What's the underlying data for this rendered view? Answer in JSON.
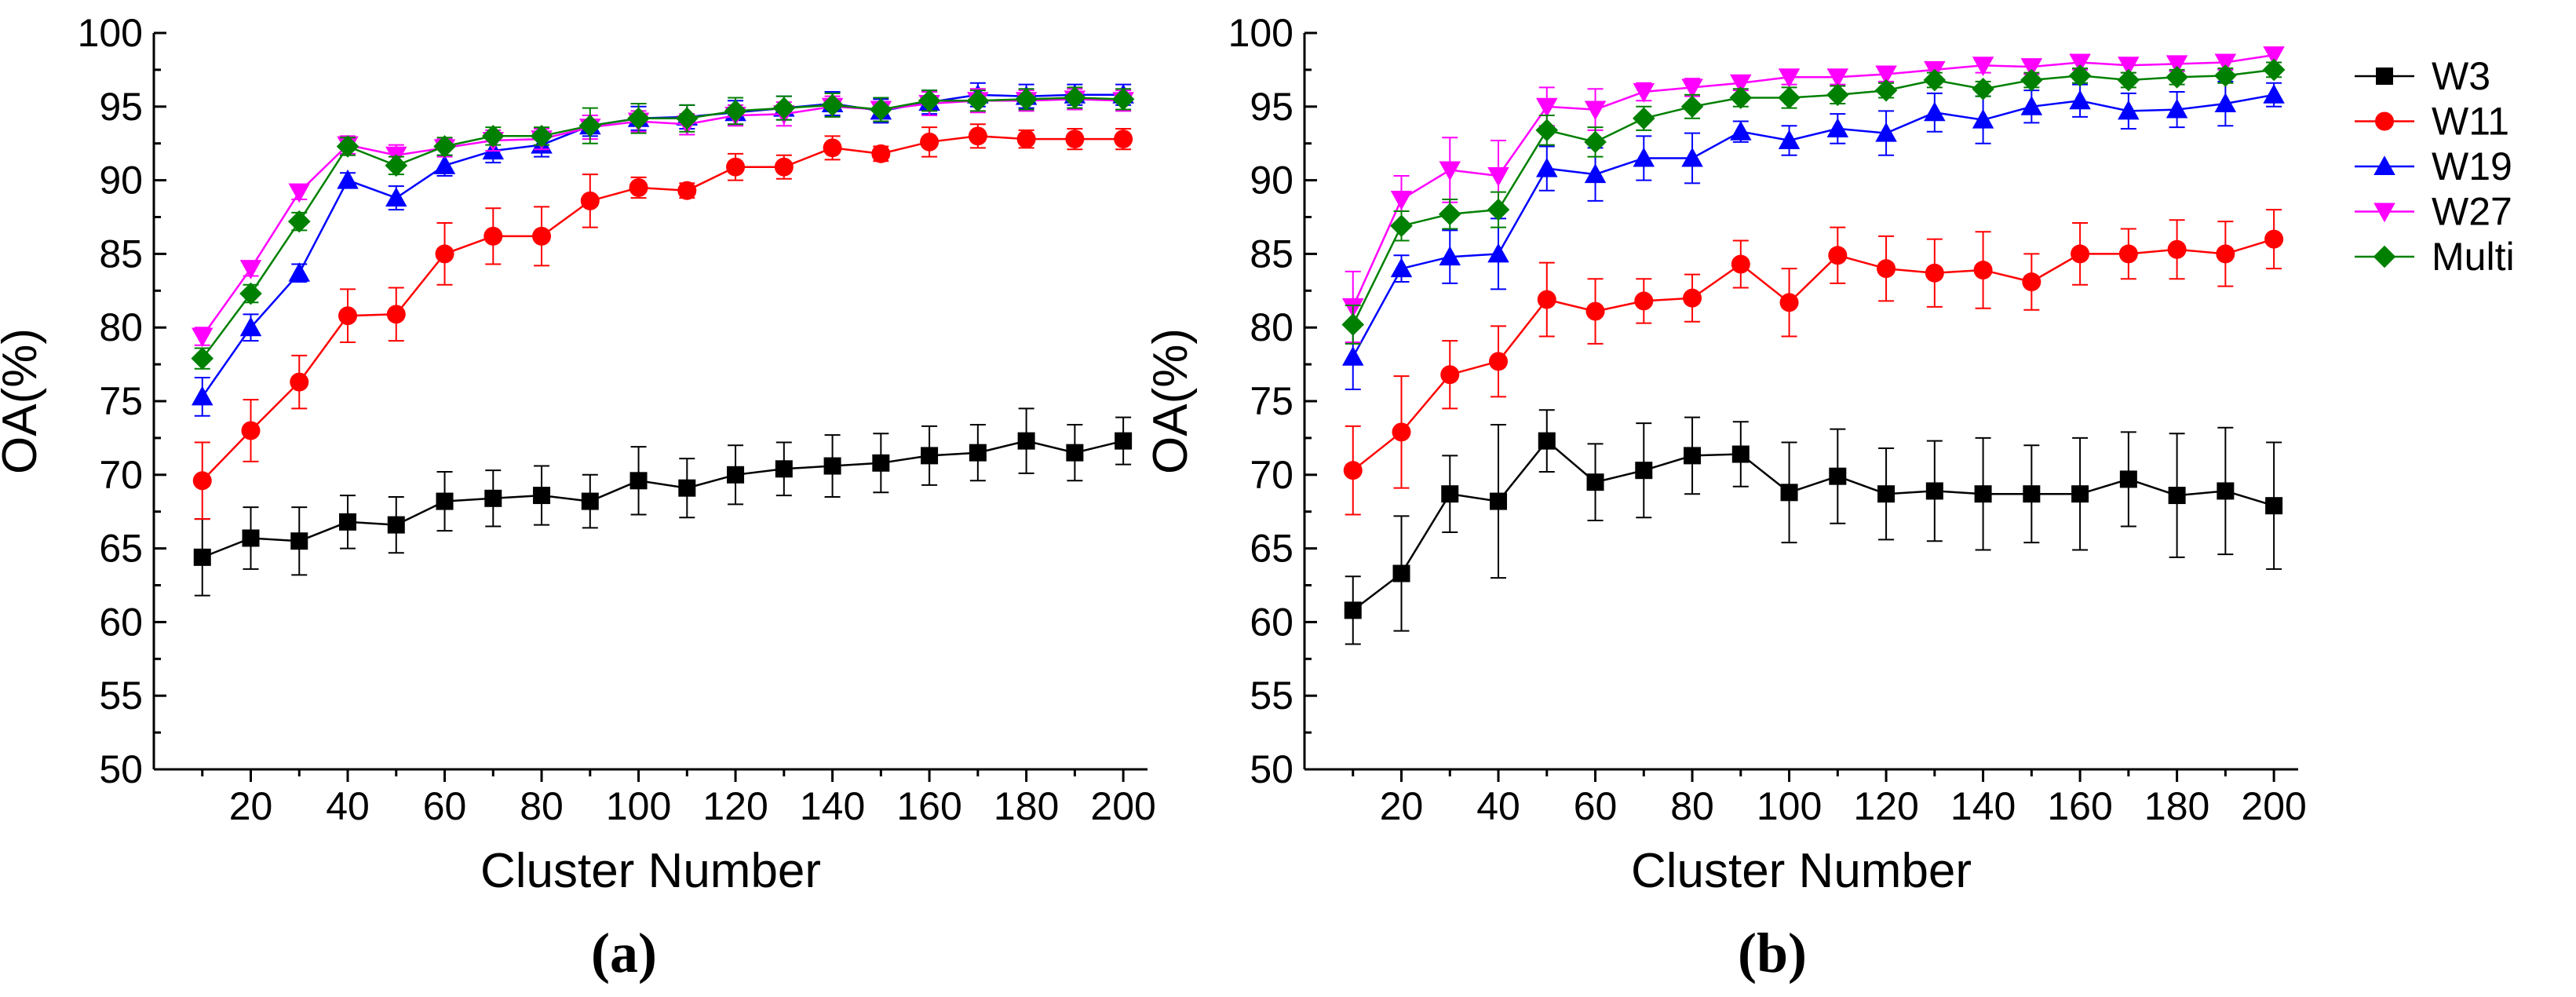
{
  "chart_data": [
    {
      "type": "line",
      "panel_label": "(a)",
      "xlabel": "Cluster Number",
      "ylabel": "OA(%)",
      "xlim": [
        0,
        205
      ],
      "ylim": [
        50,
        100
      ],
      "xticks": [
        20,
        40,
        60,
        80,
        100,
        120,
        140,
        160,
        180,
        200
      ],
      "yticks": [
        50,
        55,
        60,
        65,
        70,
        75,
        80,
        85,
        90,
        95,
        100
      ],
      "x": [
        10,
        20,
        30,
        40,
        50,
        60,
        70,
        80,
        90,
        100,
        110,
        120,
        130,
        140,
        150,
        160,
        170,
        180,
        190,
        200
      ],
      "series": [
        {
          "name": "W3",
          "color": "#000000",
          "marker": "square",
          "values": [
            64.4,
            65.7,
            65.5,
            66.8,
            66.6,
            68.2,
            68.4,
            68.6,
            68.2,
            69.6,
            69.1,
            70.0,
            70.4,
            70.6,
            70.8,
            71.3,
            71.5,
            72.3,
            71.5,
            72.3
          ],
          "errors": [
            2.6,
            2.1,
            2.3,
            1.8,
            1.9,
            2.0,
            1.9,
            2.0,
            1.8,
            2.3,
            2.0,
            2.0,
            1.8,
            2.1,
            2.0,
            2.0,
            1.9,
            2.2,
            1.9,
            1.6
          ]
        },
        {
          "name": "W11",
          "color": "#ff0000",
          "marker": "circle",
          "values": [
            69.6,
            73.0,
            76.3,
            80.8,
            80.9,
            85.0,
            86.2,
            86.2,
            88.6,
            89.5,
            89.3,
            90.9,
            90.9,
            92.2,
            91.8,
            92.6,
            93.0,
            92.8,
            92.8,
            92.8
          ],
          "errors": [
            2.6,
            2.1,
            1.8,
            1.8,
            1.8,
            2.1,
            1.9,
            2.0,
            1.8,
            0.7,
            0.5,
            0.9,
            0.8,
            0.8,
            0.5,
            1.0,
            0.8,
            0.6,
            0.7,
            0.7
          ]
        },
        {
          "name": "W19",
          "color": "#0000ff",
          "marker": "triangle-up",
          "values": [
            75.3,
            80.0,
            83.7,
            90.0,
            88.8,
            91.0,
            92.0,
            92.4,
            93.7,
            94.2,
            94.3,
            94.6,
            94.9,
            95.2,
            94.7,
            95.3,
            95.8,
            95.7,
            95.8,
            95.8
          ],
          "errors": [
            1.3,
            0.9,
            0.6,
            0.5,
            0.8,
            0.7,
            0.8,
            0.8,
            0.7,
            0.8,
            0.8,
            0.8,
            0.8,
            0.8,
            0.8,
            0.8,
            0.8,
            0.8,
            0.7,
            0.7
          ]
        },
        {
          "name": "W27",
          "color": "#ff00ff",
          "marker": "triangle-down",
          "values": [
            79.4,
            84.0,
            89.2,
            92.4,
            91.7,
            92.2,
            92.7,
            92.8,
            93.6,
            94.0,
            93.8,
            94.4,
            94.5,
            95.0,
            94.8,
            95.2,
            95.4,
            95.4,
            95.5,
            95.4
          ],
          "errors": [
            0.6,
            0.5,
            0.5,
            0.6,
            0.7,
            0.6,
            0.7,
            0.7,
            0.8,
            0.7,
            0.7,
            0.7,
            0.8,
            0.7,
            0.8,
            0.8,
            0.8,
            0.7,
            0.7,
            0.7
          ]
        },
        {
          "name": "Multi",
          "color": "#008000",
          "marker": "diamond",
          "values": [
            77.9,
            82.3,
            87.2,
            92.3,
            91.0,
            92.3,
            93.0,
            93.0,
            93.7,
            94.2,
            94.2,
            94.7,
            94.9,
            95.1,
            94.8,
            95.4,
            95.4,
            95.5,
            95.6,
            95.5
          ],
          "errors": [
            0.7,
            0.6,
            0.6,
            0.6,
            0.6,
            0.6,
            0.6,
            0.6,
            1.2,
            1.0,
            0.9,
            0.9,
            0.8,
            0.8,
            0.8,
            0.7,
            0.7,
            0.7,
            0.7,
            0.7
          ]
        }
      ]
    },
    {
      "type": "line",
      "panel_label": "(b)",
      "xlabel": "Cluster Number",
      "ylabel": "OA(%)",
      "xlim": [
        0,
        205
      ],
      "ylim": [
        50,
        100
      ],
      "xticks": [
        20,
        40,
        60,
        80,
        100,
        120,
        140,
        160,
        180,
        200
      ],
      "yticks": [
        50,
        55,
        60,
        65,
        70,
        75,
        80,
        85,
        90,
        95,
        100
      ],
      "x": [
        10,
        20,
        30,
        40,
        50,
        60,
        70,
        80,
        90,
        100,
        110,
        120,
        130,
        140,
        150,
        160,
        170,
        180,
        190,
        200
      ],
      "series": [
        {
          "name": "W3",
          "color": "#000000",
          "marker": "square",
          "values": [
            60.8,
            63.3,
            68.7,
            68.2,
            72.3,
            69.5,
            70.3,
            71.3,
            71.4,
            68.8,
            69.9,
            68.7,
            68.9,
            68.7,
            68.7,
            68.7,
            69.7,
            68.6,
            68.9,
            67.9
          ],
          "errors": [
            2.3,
            3.9,
            2.6,
            5.2,
            2.1,
            2.6,
            3.2,
            2.6,
            2.2,
            3.4,
            3.2,
            3.1,
            3.4,
            3.8,
            3.3,
            3.8,
            3.2,
            4.2,
            4.3,
            4.3
          ]
        },
        {
          "name": "W11",
          "color": "#ff0000",
          "marker": "circle",
          "values": [
            70.3,
            72.9,
            76.8,
            77.7,
            81.9,
            81.1,
            81.8,
            82.0,
            84.3,
            81.7,
            84.9,
            84.0,
            83.7,
            83.9,
            83.1,
            85.0,
            85.0,
            85.3,
            85.0,
            86.0
          ],
          "errors": [
            3.0,
            3.8,
            2.3,
            2.4,
            2.5,
            2.2,
            1.5,
            1.6,
            1.6,
            2.3,
            1.9,
            2.2,
            2.3,
            2.6,
            1.9,
            2.1,
            1.7,
            2.0,
            2.2,
            2.0
          ]
        },
        {
          "name": "W19",
          "color": "#0000ff",
          "marker": "triangle-up",
          "values": [
            78.0,
            84.0,
            84.8,
            85.0,
            90.8,
            90.4,
            91.5,
            91.5,
            93.3,
            92.7,
            93.5,
            93.2,
            94.6,
            94.1,
            95.0,
            95.4,
            94.7,
            94.8,
            95.2,
            95.8
          ],
          "errors": [
            2.2,
            0.9,
            1.8,
            2.4,
            1.5,
            1.8,
            1.5,
            1.7,
            0.7,
            1.0,
            1.0,
            1.5,
            1.3,
            1.6,
            1.1,
            1.1,
            1.2,
            1.2,
            1.5,
            0.8
          ]
        },
        {
          "name": "W27",
          "color": "#ff00ff",
          "marker": "triangle-down",
          "values": [
            81.4,
            88.7,
            90.7,
            90.3,
            95.0,
            94.8,
            96.0,
            96.3,
            96.6,
            97.0,
            97.0,
            97.2,
            97.5,
            97.8,
            97.7,
            98.0,
            97.8,
            97.9,
            98.0,
            98.5
          ],
          "errors": [
            2.4,
            1.6,
            2.2,
            2.4,
            1.3,
            1.4,
            0.6,
            0.6,
            0.5,
            0.5,
            0.5,
            0.5,
            0.5,
            0.5,
            0.5,
            0.5,
            0.5,
            0.5,
            0.5,
            0.5
          ]
        },
        {
          "name": "Multi",
          "color": "#008000",
          "marker": "diamond",
          "values": [
            80.2,
            86.9,
            87.7,
            88.0,
            93.4,
            92.6,
            94.2,
            95.0,
            95.6,
            95.6,
            95.8,
            96.1,
            96.8,
            96.2,
            96.8,
            97.1,
            96.8,
            97.0,
            97.1,
            97.5
          ],
          "errors": [
            1.3,
            1.0,
            1.0,
            1.2,
            1.0,
            1.0,
            0.8,
            0.8,
            0.6,
            0.7,
            0.6,
            0.5,
            0.5,
            0.5,
            0.5,
            0.5,
            0.5,
            0.5,
            0.5,
            0.5
          ]
        }
      ]
    }
  ],
  "legend": {
    "position": "right",
    "items": [
      {
        "name": "W3",
        "color": "#000000",
        "marker": "square"
      },
      {
        "name": "W11",
        "color": "#ff0000",
        "marker": "circle"
      },
      {
        "name": "W19",
        "color": "#0000ff",
        "marker": "triangle-up"
      },
      {
        "name": "W27",
        "color": "#ff00ff",
        "marker": "triangle-down"
      },
      {
        "name": "Multi",
        "color": "#008000",
        "marker": "diamond"
      }
    ]
  }
}
